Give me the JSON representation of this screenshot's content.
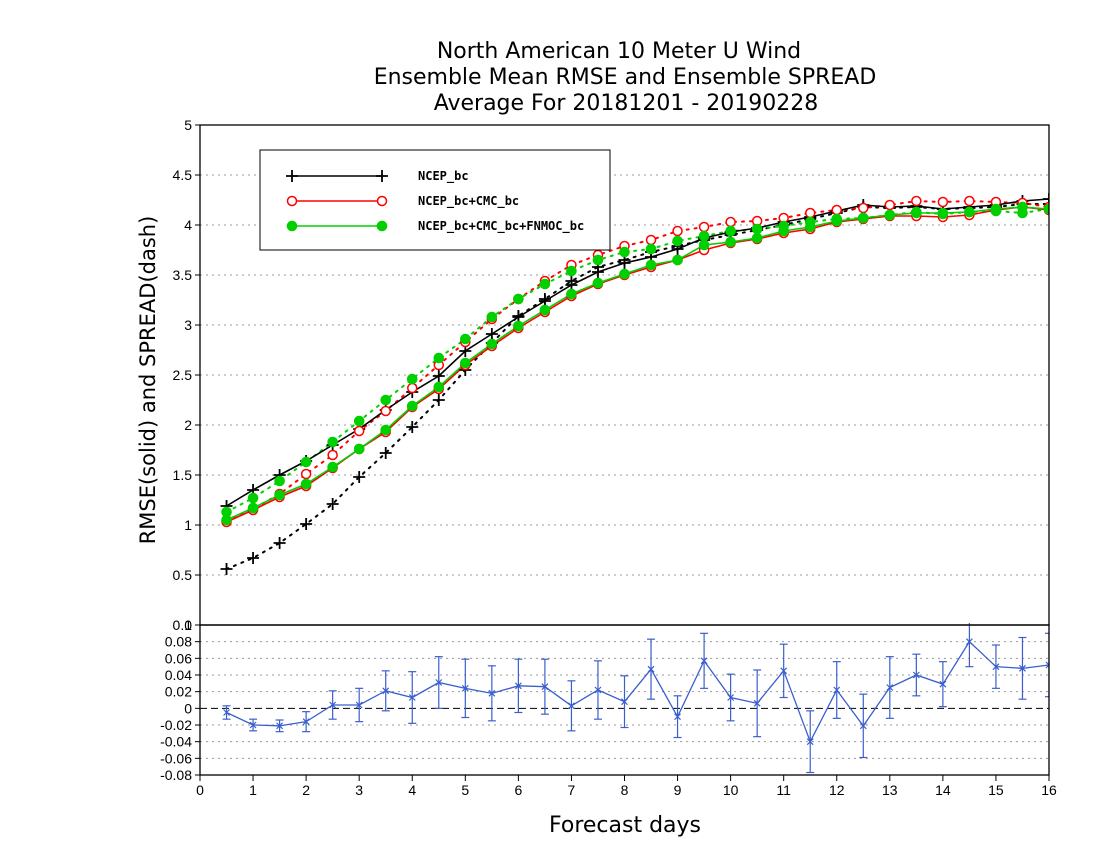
{
  "chart_data": [
    {
      "type": "line",
      "title": [
        "North American 10 Meter U Wind",
        "Ensemble Mean RMSE and Ensemble SPREAD",
        "Average For 20181201 - 20190228"
      ],
      "ylabel": "RMSE(solid) and SPREAD(dash)",
      "ylim": [
        0,
        5
      ],
      "yticks": [
        "0",
        "0.5",
        "1",
        "1.5",
        "2",
        "2.5",
        "3",
        "3.5",
        "4",
        "4.5",
        "5"
      ],
      "grid": true,
      "legend_position": "top-left",
      "x": [
        0.5,
        1,
        1.5,
        2,
        2.5,
        3,
        3.5,
        4,
        4.5,
        5,
        5.5,
        6,
        6.5,
        7,
        7.5,
        8,
        8.5,
        9,
        9.5,
        10,
        10.5,
        11,
        11.5,
        12,
        12.5,
        13,
        13.5,
        14,
        14.5,
        15,
        15.5,
        16
      ],
      "series": [
        {
          "name": "NCEP_bc",
          "color": "#000000",
          "marker": "plus",
          "rmse": [
            1.19,
            1.35,
            1.5,
            1.64,
            1.8,
            1.96,
            2.15,
            2.33,
            2.49,
            2.74,
            2.91,
            3.08,
            3.24,
            3.4,
            3.53,
            3.62,
            3.68,
            3.76,
            3.87,
            3.93,
            3.97,
            4.03,
            4.08,
            4.14,
            4.2,
            4.18,
            4.19,
            4.16,
            4.18,
            4.2,
            4.24,
            4.26
          ],
          "spread": [
            0.56,
            0.67,
            0.82,
            1.01,
            1.21,
            1.48,
            1.72,
            1.98,
            2.25,
            2.55,
            2.82,
            3.09,
            3.26,
            3.44,
            3.58,
            3.65,
            3.73,
            3.79,
            3.85,
            3.9,
            3.95,
            4.0,
            4.06,
            4.12,
            4.18,
            4.17,
            4.18,
            4.16,
            4.17,
            4.18,
            4.21,
            4.21
          ]
        },
        {
          "name": "NCEP_bc+CMC_bc",
          "color": "#ff0000",
          "marker": "open-circle",
          "rmse": [
            1.03,
            1.15,
            1.28,
            1.39,
            1.57,
            1.76,
            1.93,
            2.18,
            2.36,
            2.6,
            2.79,
            2.97,
            3.13,
            3.29,
            3.41,
            3.5,
            3.58,
            3.65,
            3.75,
            3.82,
            3.86,
            3.92,
            3.96,
            4.03,
            4.06,
            4.09,
            4.09,
            4.08,
            4.1,
            4.15,
            4.18,
            4.15
          ],
          "spread": [
            1.04,
            1.16,
            1.31,
            1.51,
            1.7,
            1.94,
            2.14,
            2.37,
            2.6,
            2.83,
            3.06,
            3.26,
            3.44,
            3.6,
            3.7,
            3.79,
            3.85,
            3.94,
            3.98,
            4.03,
            4.04,
            4.07,
            4.12,
            4.15,
            4.17,
            4.2,
            4.24,
            4.23,
            4.24,
            4.23,
            4.22,
            4.18
          ]
        },
        {
          "name": "NCEP_bc+CMC_bc+FNMOC_bc",
          "color": "#00d000",
          "marker": "filled-circle",
          "rmse": [
            1.05,
            1.17,
            1.3,
            1.41,
            1.58,
            1.76,
            1.95,
            2.19,
            2.38,
            2.62,
            2.81,
            2.99,
            3.15,
            3.31,
            3.42,
            3.51,
            3.6,
            3.65,
            3.8,
            3.83,
            3.87,
            3.94,
            3.98,
            4.04,
            4.07,
            4.1,
            4.12,
            4.12,
            4.13,
            4.16,
            4.18,
            4.16
          ],
          "spread": [
            1.13,
            1.27,
            1.44,
            1.63,
            1.83,
            2.04,
            2.25,
            2.46,
            2.67,
            2.86,
            3.08,
            3.26,
            3.41,
            3.54,
            3.65,
            3.73,
            3.76,
            3.84,
            3.89,
            3.94,
            3.96,
            3.99,
            4.03,
            4.06,
            4.07,
            4.1,
            4.13,
            4.11,
            4.13,
            4.14,
            4.12,
            4.16
          ]
        }
      ]
    },
    {
      "type": "line",
      "xlabel": "Forecast days",
      "xlim": [
        0,
        16
      ],
      "xticks": [
        "0",
        "1",
        "2",
        "3",
        "4",
        "5",
        "6",
        "7",
        "8",
        "9",
        "10",
        "11",
        "12",
        "13",
        "14",
        "15",
        "16"
      ],
      "ylim": [
        -0.08,
        0.1
      ],
      "yticks": [
        "-0.08",
        "-0.06",
        "-0.04",
        "-0.02",
        "0",
        "0.02",
        "0.04",
        "0.06",
        "0.08",
        "0.1"
      ],
      "zero_line": "dashed",
      "series": [
        {
          "color": "#3a5fcd",
          "marker": "cross",
          "x": [
            0.5,
            1,
            1.5,
            2,
            2.5,
            3,
            3.5,
            4,
            4.5,
            5,
            5.5,
            6,
            6.5,
            7,
            7.5,
            8,
            8.5,
            9,
            9.5,
            10,
            10.5,
            11,
            11.5,
            12,
            12.5,
            13,
            13.5,
            14,
            14.5,
            15,
            15.5,
            16
          ],
          "y": [
            -0.005,
            -0.02,
            -0.021,
            -0.016,
            0.004,
            0.004,
            0.021,
            0.013,
            0.031,
            0.024,
            0.018,
            0.027,
            0.026,
            0.003,
            0.022,
            0.008,
            0.047,
            -0.01,
            0.057,
            0.013,
            0.006,
            0.045,
            -0.04,
            0.022,
            -0.021,
            0.025,
            0.04,
            0.029,
            0.08,
            0.05,
            0.048,
            0.052
          ],
          "err": [
            0.008,
            0.007,
            0.007,
            0.012,
            0.017,
            0.02,
            0.024,
            0.031,
            0.031,
            0.035,
            0.033,
            0.032,
            0.033,
            0.03,
            0.035,
            0.031,
            0.036,
            0.025,
            0.033,
            0.028,
            0.04,
            0.032,
            0.037,
            0.034,
            0.038,
            0.037,
            0.025,
            0.027,
            0.03,
            0.026,
            0.037,
            0.038
          ]
        }
      ]
    }
  ]
}
